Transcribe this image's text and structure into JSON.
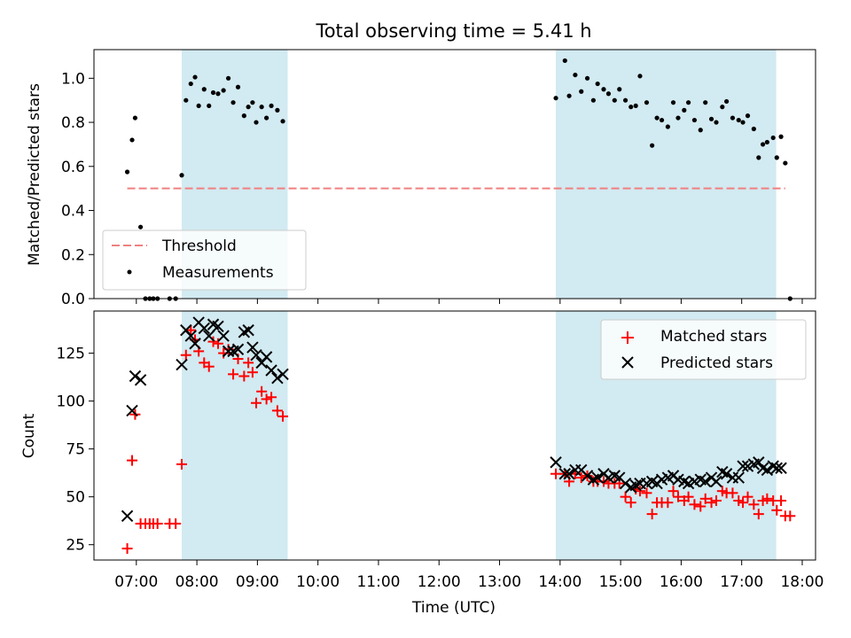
{
  "figure": {
    "title": "Total observing time = 5.41 h"
  },
  "colors": {
    "band": "#add8e6",
    "threshold": "#f08080",
    "matched": "#ff0000",
    "predicted": "#000000",
    "measurement": "#000000"
  },
  "chart_data": [
    {
      "type": "scatter",
      "ylabel": "Matched/Predicted stars",
      "xlim": [
        6.3,
        18.22
      ],
      "ylim": [
        0,
        1.13
      ],
      "yticks": [
        "0.0",
        "0.2",
        "0.4",
        "0.6",
        "0.8",
        "1.0"
      ],
      "xticks_shown": false,
      "shaded_bands": [
        [
          7.75,
          9.5
        ],
        [
          13.93,
          17.57
        ]
      ],
      "threshold": {
        "name": "Threshold",
        "y": 0.5,
        "x_range": [
          6.85,
          17.72
        ],
        "style": "dashed"
      },
      "legend": {
        "placement": "lower-left",
        "entries": [
          "Threshold",
          "Measurements"
        ]
      },
      "series": [
        {
          "name": "Measurements",
          "marker": "dot",
          "points": [
            [
              6.85,
              0.575
            ],
            [
              6.93,
              0.72
            ],
            [
              6.98,
              0.82
            ],
            [
              7.07,
              0.325
            ],
            [
              7.15,
              0
            ],
            [
              7.22,
              0
            ],
            [
              7.28,
              0
            ],
            [
              7.35,
              0
            ],
            [
              7.55,
              0
            ],
            [
              7.65,
              0
            ],
            [
              7.75,
              0.56
            ],
            [
              7.82,
              0.9
            ],
            [
              7.9,
              0.975
            ],
            [
              7.97,
              1.005
            ],
            [
              8.03,
              0.875
            ],
            [
              8.12,
              0.95
            ],
            [
              8.2,
              0.875
            ],
            [
              8.27,
              0.935
            ],
            [
              8.35,
              0.93
            ],
            [
              8.44,
              0.945
            ],
            [
              8.52,
              1.0
            ],
            [
              8.6,
              0.89
            ],
            [
              8.68,
              0.96
            ],
            [
              8.78,
              0.83
            ],
            [
              8.85,
              0.87
            ],
            [
              8.92,
              0.89
            ],
            [
              8.98,
              0.8
            ],
            [
              9.07,
              0.87
            ],
            [
              9.15,
              0.82
            ],
            [
              9.23,
              0.875
            ],
            [
              9.33,
              0.855
            ],
            [
              9.42,
              0.805
            ],
            [
              13.93,
              0.91
            ],
            [
              14.08,
              1.08
            ],
            [
              14.15,
              0.92
            ],
            [
              14.25,
              1.015
            ],
            [
              14.35,
              0.94
            ],
            [
              14.45,
              1.0
            ],
            [
              14.55,
              0.9
            ],
            [
              14.62,
              0.975
            ],
            [
              14.72,
              0.95
            ],
            [
              14.8,
              0.93
            ],
            [
              14.9,
              0.9
            ],
            [
              14.98,
              0.95
            ],
            [
              15.08,
              0.9
            ],
            [
              15.17,
              0.87
            ],
            [
              15.25,
              0.875
            ],
            [
              15.32,
              1.01
            ],
            [
              15.43,
              0.89
            ],
            [
              15.52,
              0.695
            ],
            [
              15.6,
              0.82
            ],
            [
              15.68,
              0.81
            ],
            [
              15.78,
              0.78
            ],
            [
              15.87,
              0.89
            ],
            [
              15.95,
              0.82
            ],
            [
              16.05,
              0.855
            ],
            [
              16.12,
              0.89
            ],
            [
              16.22,
              0.81
            ],
            [
              16.32,
              0.765
            ],
            [
              16.4,
              0.89
            ],
            [
              16.5,
              0.815
            ],
            [
              16.58,
              0.8
            ],
            [
              16.68,
              0.87
            ],
            [
              16.75,
              0.895
            ],
            [
              16.85,
              0.82
            ],
            [
              16.95,
              0.81
            ],
            [
              17.02,
              0.8
            ],
            [
              17.1,
              0.83
            ],
            [
              17.2,
              0.77
            ],
            [
              17.28,
              0.64
            ],
            [
              17.35,
              0.7
            ],
            [
              17.42,
              0.71
            ],
            [
              17.52,
              0.73
            ],
            [
              17.58,
              0.64
            ],
            [
              17.65,
              0.735
            ],
            [
              17.72,
              0.615
            ],
            [
              17.8,
              0
            ]
          ]
        }
      ]
    },
    {
      "type": "scatter",
      "xlabel": "Time (UTC)",
      "ylabel": "Count",
      "xlim": [
        6.3,
        18.22
      ],
      "ylim": [
        17,
        147
      ],
      "yticks": [
        "25",
        "50",
        "75",
        "100",
        "125"
      ],
      "xtick_values": [
        7,
        8,
        9,
        10,
        11,
        12,
        13,
        14,
        15,
        16,
        17,
        18
      ],
      "xticks": [
        "07:00",
        "08:00",
        "09:00",
        "10:00",
        "11:00",
        "12:00",
        "13:00",
        "14:00",
        "15:00",
        "16:00",
        "17:00",
        "18:00"
      ],
      "shaded_bands": [
        [
          7.75,
          9.5
        ],
        [
          13.93,
          17.57
        ]
      ],
      "legend": {
        "placement": "upper-right",
        "entries": [
          "Matched stars",
          "Predicted stars"
        ]
      },
      "series": [
        {
          "name": "Matched stars",
          "marker": "plus",
          "points": [
            [
              6.85,
              23
            ],
            [
              6.93,
              69
            ],
            [
              6.98,
              93
            ],
            [
              7.07,
              36
            ],
            [
              7.15,
              36
            ],
            [
              7.22,
              36
            ],
            [
              7.28,
              36
            ],
            [
              7.35,
              36
            ],
            [
              7.55,
              36
            ],
            [
              7.65,
              36
            ],
            [
              7.75,
              67
            ],
            [
              7.82,
              124
            ],
            [
              7.9,
              137
            ],
            [
              7.97,
              132
            ],
            [
              8.03,
              126
            ],
            [
              8.12,
              120
            ],
            [
              8.2,
              118
            ],
            [
              8.27,
              131
            ],
            [
              8.35,
              130
            ],
            [
              8.44,
              125
            ],
            [
              8.52,
              127
            ],
            [
              8.6,
              114
            ],
            [
              8.68,
              122
            ],
            [
              8.78,
              113
            ],
            [
              8.85,
              120
            ],
            [
              8.92,
              115
            ],
            [
              8.98,
              99
            ],
            [
              9.07,
              105
            ],
            [
              9.15,
              101
            ],
            [
              9.23,
              102
            ],
            [
              9.33,
              95
            ],
            [
              9.42,
              92
            ],
            [
              13.93,
              62
            ],
            [
              14.08,
              62
            ],
            [
              14.15,
              58
            ],
            [
              14.25,
              62
            ],
            [
              14.35,
              60
            ],
            [
              14.45,
              61
            ],
            [
              14.55,
              58
            ],
            [
              14.62,
              58
            ],
            [
              14.72,
              58
            ],
            [
              14.8,
              57
            ],
            [
              14.9,
              57
            ],
            [
              14.98,
              57
            ],
            [
              15.08,
              50
            ],
            [
              15.17,
              47
            ],
            [
              15.25,
              54
            ],
            [
              15.32,
              53
            ],
            [
              15.43,
              52
            ],
            [
              15.52,
              41
            ],
            [
              15.6,
              47
            ],
            [
              15.68,
              47
            ],
            [
              15.78,
              47
            ],
            [
              15.87,
              53
            ],
            [
              15.95,
              50
            ],
            [
              16.05,
              48
            ],
            [
              16.12,
              50
            ],
            [
              16.22,
              46
            ],
            [
              16.32,
              45
            ],
            [
              16.4,
              49
            ],
            [
              16.5,
              47
            ],
            [
              16.58,
              48
            ],
            [
              16.68,
              53
            ],
            [
              16.75,
              52
            ],
            [
              16.85,
              52
            ],
            [
              16.95,
              48
            ],
            [
              17.02,
              47
            ],
            [
              17.1,
              50
            ],
            [
              17.2,
              46
            ],
            [
              17.28,
              41
            ],
            [
              17.35,
              48
            ],
            [
              17.42,
              49
            ],
            [
              17.52,
              48
            ],
            [
              17.58,
              43
            ],
            [
              17.65,
              48
            ],
            [
              17.72,
              40
            ],
            [
              17.8,
              40
            ]
          ]
        },
        {
          "name": "Predicted stars",
          "marker": "cross",
          "points": [
            [
              6.85,
              40
            ],
            [
              6.93,
              95
            ],
            [
              6.98,
              113
            ],
            [
              7.07,
              111
            ],
            [
              7.75,
              119
            ],
            [
              7.82,
              137
            ],
            [
              7.9,
              134
            ],
            [
              7.97,
              130
            ],
            [
              8.03,
              141
            ],
            [
              8.12,
              138
            ],
            [
              8.2,
              134
            ],
            [
              8.27,
              140
            ],
            [
              8.35,
              139
            ],
            [
              8.44,
              134
            ],
            [
              8.52,
              126
            ],
            [
              8.6,
              126
            ],
            [
              8.68,
              127
            ],
            [
              8.78,
              136
            ],
            [
              8.85,
              137
            ],
            [
              8.92,
              128
            ],
            [
              8.98,
              124
            ],
            [
              9.07,
              120
            ],
            [
              9.15,
              123
            ],
            [
              9.23,
              116
            ],
            [
              9.33,
              112
            ],
            [
              9.42,
              114
            ],
            [
              13.93,
              68
            ],
            [
              14.08,
              62
            ],
            [
              14.15,
              62
            ],
            [
              14.25,
              64
            ],
            [
              14.35,
              64
            ],
            [
              14.45,
              61
            ],
            [
              14.55,
              59
            ],
            [
              14.62,
              60
            ],
            [
              14.72,
              62
            ],
            [
              14.8,
              60
            ],
            [
              14.9,
              61
            ],
            [
              14.98,
              60
            ],
            [
              15.08,
              57
            ],
            [
              15.17,
              55
            ],
            [
              15.25,
              56
            ],
            [
              15.32,
              57
            ],
            [
              15.43,
              57
            ],
            [
              15.52,
              58
            ],
            [
              15.6,
              57
            ],
            [
              15.68,
              59
            ],
            [
              15.78,
              60
            ],
            [
              15.87,
              61
            ],
            [
              15.95,
              59
            ],
            [
              16.05,
              58
            ],
            [
              16.12,
              57
            ],
            [
              16.22,
              58
            ],
            [
              16.32,
              59
            ],
            [
              16.4,
              58
            ],
            [
              16.5,
              60
            ],
            [
              16.58,
              58
            ],
            [
              16.68,
              63
            ],
            [
              16.75,
              62
            ],
            [
              16.85,
              60
            ],
            [
              16.95,
              60
            ],
            [
              17.02,
              66
            ],
            [
              17.1,
              66
            ],
            [
              17.2,
              67
            ],
            [
              17.28,
              68
            ],
            [
              17.35,
              65
            ],
            [
              17.42,
              64
            ],
            [
              17.52,
              66
            ],
            [
              17.58,
              65
            ],
            [
              17.65,
              65
            ]
          ]
        }
      ]
    }
  ]
}
